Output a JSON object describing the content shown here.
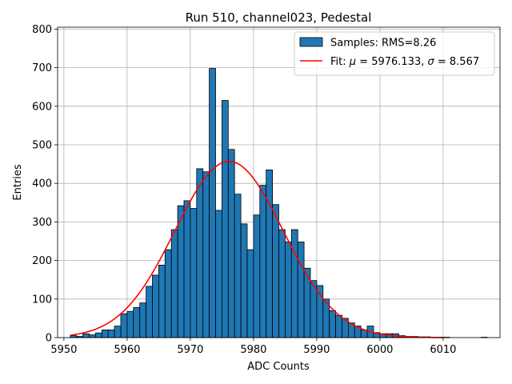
{
  "chart_data": {
    "type": "bar",
    "title": "Run 510, channel023, Pedestal",
    "xlabel": "ADC Counts",
    "ylabel": "Entries",
    "xlim": [
      5949,
      6019
    ],
    "ylim": [
      0,
      805
    ],
    "xticks": [
      5950,
      5960,
      5970,
      5980,
      5990,
      6000,
      6010
    ],
    "yticks": [
      0,
      100,
      200,
      300,
      400,
      500,
      600,
      700,
      800
    ],
    "grid": true,
    "legend_position": "top-right",
    "histogram": {
      "name": "Samples: RMS=8.26",
      "color": "#1f77b4",
      "edge_color": "#000000",
      "bin_edges_start": 5951,
      "bin_width": 1,
      "counts": [
        5,
        3,
        10,
        7,
        12,
        20,
        20,
        30,
        62,
        68,
        78,
        90,
        133,
        162,
        188,
        228,
        280,
        342,
        355,
        335,
        438,
        430,
        698,
        330,
        615,
        488,
        372,
        295,
        228,
        318,
        395,
        435,
        345,
        280,
        248,
        280,
        248,
        180,
        148,
        135,
        100,
        70,
        58,
        50,
        38,
        30,
        20,
        30,
        13,
        10,
        10,
        10,
        5,
        3,
        3,
        2,
        2,
        1,
        1,
        1,
        0,
        0,
        0,
        0,
        0,
        1
      ]
    },
    "fit": {
      "name": "Fit: μ = 5976.133, σ = 8.567",
      "legend_prefix": "Fit: ",
      "mu_symbol": "μ",
      "mu_text": " = 5976.133, ",
      "sigma_symbol": "σ",
      "sigma_text": " = 8.567",
      "color": "#ff0000",
      "mu": 5976.133,
      "sigma": 8.567,
      "amplitude": 457,
      "x_range": [
        5951,
        6010
      ]
    }
  }
}
